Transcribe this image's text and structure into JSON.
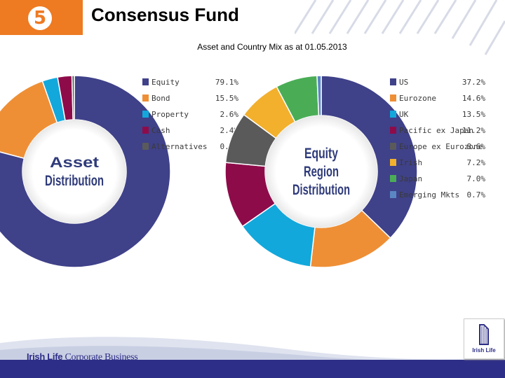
{
  "header": {
    "badge_number": "5",
    "title": "Consensus Fund",
    "subtitle": "Asset and Country Mix as at 01.05.2013"
  },
  "chart_data": [
    {
      "type": "pie",
      "title": "",
      "center_label_lines": [
        "Asset",
        "Distribution"
      ],
      "legend_placement": "right",
      "categories": [
        "Equity",
        "Bond",
        "Property",
        "Cash",
        "Alternatives"
      ],
      "values": [
        79.1,
        15.5,
        2.6,
        2.4,
        0.4
      ],
      "value_labels": [
        "79.1%",
        "15.5%",
        "2.6%",
        "2.4%",
        "0.4%"
      ],
      "colors": [
        "#3f4189",
        "#ee8f36",
        "#12a8dc",
        "#8e0b4a",
        "#5a5a5a"
      ]
    },
    {
      "type": "pie",
      "title": "",
      "center_label_lines": [
        "Equity",
        "Region",
        "Distribution"
      ],
      "legend_placement": "right",
      "categories": [
        "US",
        "Eurozone",
        "UK",
        "Pacific ex Japan",
        "Europe ex Eurozone",
        "Irish",
        "Japan",
        "Emerging Mkts"
      ],
      "values": [
        37.2,
        14.6,
        13.5,
        11.2,
        8.6,
        7.2,
        7.0,
        0.7
      ],
      "value_labels": [
        "37.2%",
        "14.6%",
        "13.5%",
        "11.2%",
        "8.6%",
        "7.2%",
        "7.0%",
        "0.7%"
      ],
      "colors": [
        "#3f4189",
        "#ee8f36",
        "#12a8dc",
        "#8e0b4a",
        "#5a5a5a",
        "#f2b02d",
        "#4aad56",
        "#5b86c4"
      ]
    }
  ],
  "footer": {
    "brand": "Irish Life",
    "brand_sub": "Corporate Business",
    "logo_text": "Irish Life"
  }
}
